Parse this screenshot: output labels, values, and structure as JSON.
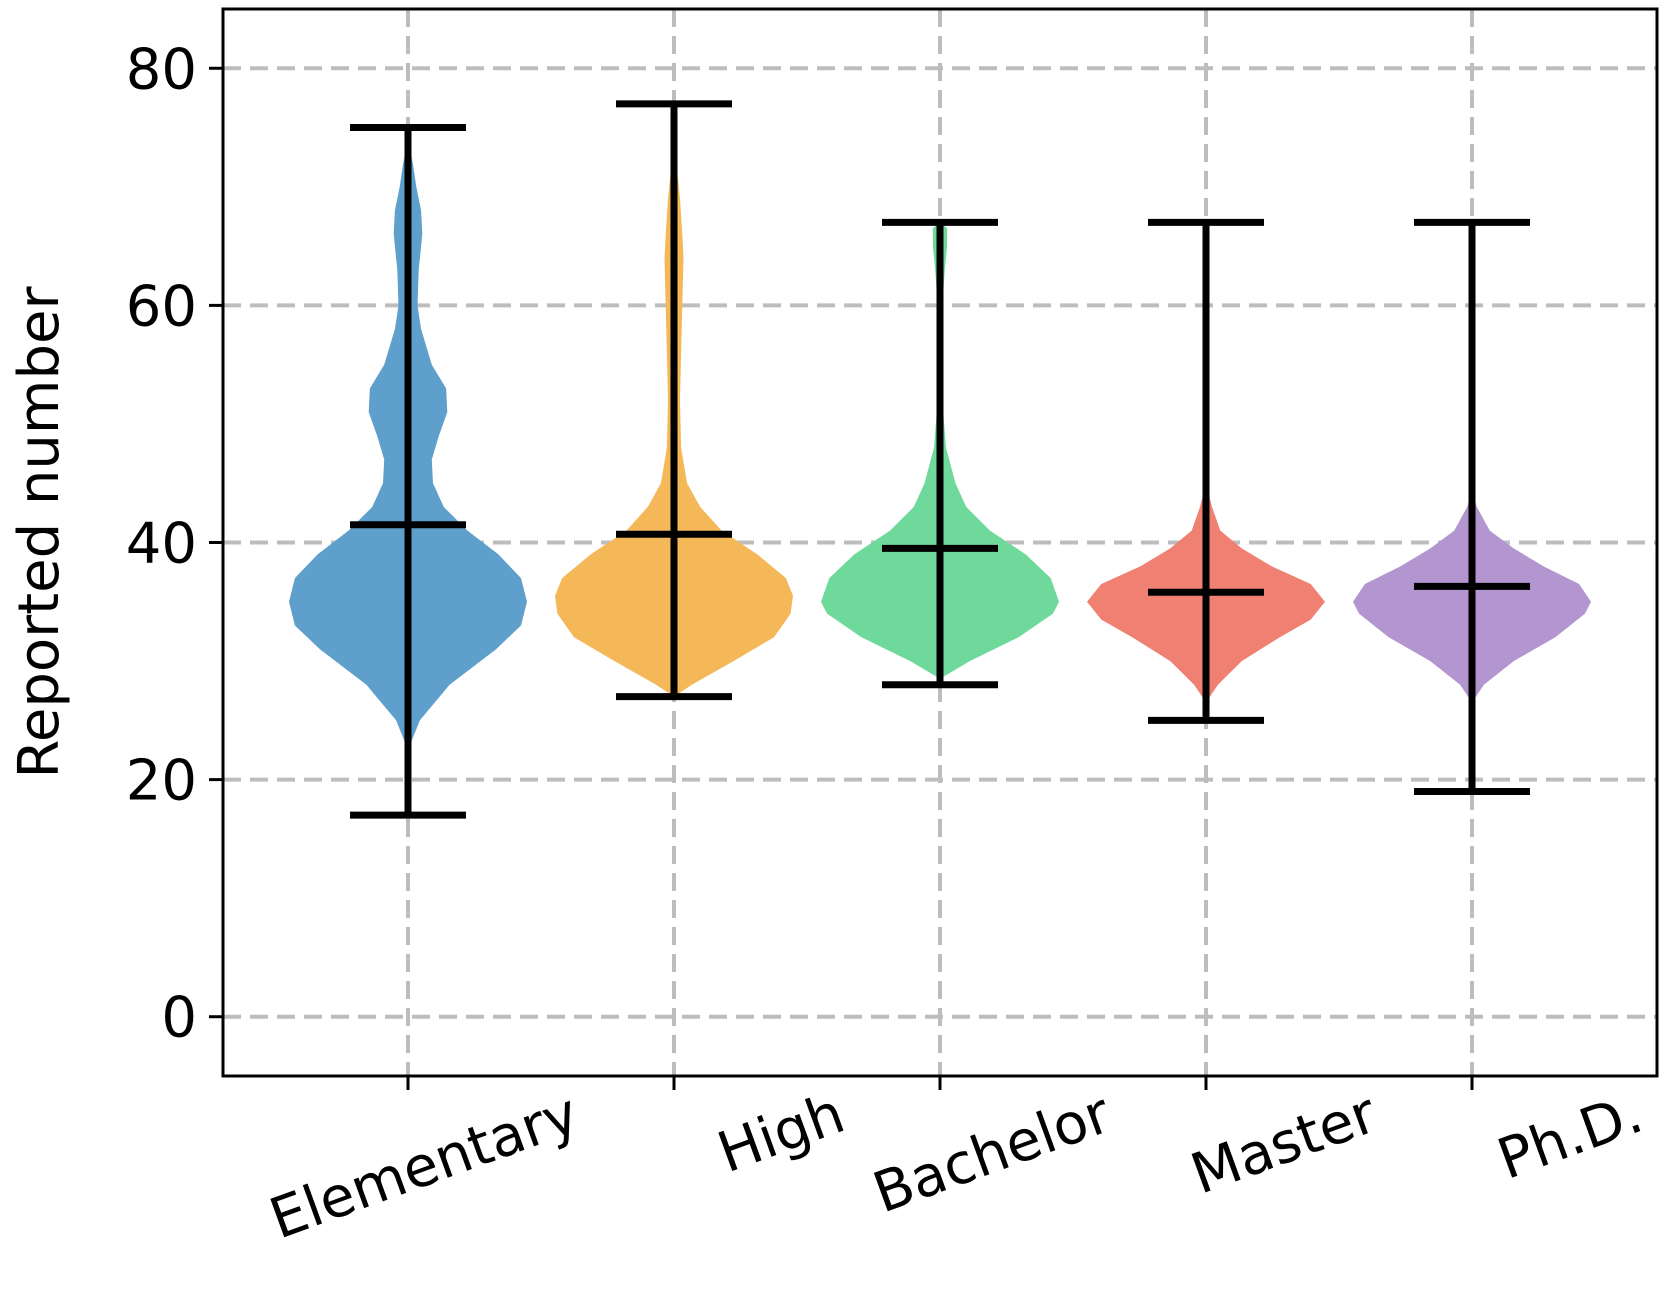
{
  "chart_data": {
    "type": "violin",
    "title": "",
    "xlabel": "",
    "ylabel": "Reported number",
    "ylim": [
      -5,
      85
    ],
    "yticks": [
      0,
      20,
      40,
      60,
      80
    ],
    "grid": true,
    "categories": [
      "Elementary",
      "High",
      "Bachelor",
      "Master",
      "Ph.D."
    ],
    "violins": [
      {
        "name": "Elementary",
        "color": "#5f9fcb",
        "min": 17,
        "max": 75,
        "mean": 41.5,
        "density": [
          [
            22.5,
            0.0
          ],
          [
            25,
            0.1
          ],
          [
            28,
            0.35
          ],
          [
            31,
            0.74
          ],
          [
            33,
            0.95
          ],
          [
            35,
            1.0
          ],
          [
            37,
            0.95
          ],
          [
            39,
            0.76
          ],
          [
            41,
            0.5
          ],
          [
            43,
            0.3
          ],
          [
            45,
            0.21
          ],
          [
            47,
            0.2
          ],
          [
            49,
            0.26
          ],
          [
            51,
            0.33
          ],
          [
            53,
            0.32
          ],
          [
            55,
            0.2
          ],
          [
            58,
            0.11
          ],
          [
            60,
            0.08
          ],
          [
            63,
            0.09
          ],
          [
            66,
            0.12
          ],
          [
            68,
            0.11
          ],
          [
            70,
            0.07
          ],
          [
            72,
            0.04
          ],
          [
            74,
            0.0
          ]
        ]
      },
      {
        "name": "High",
        "color": "#f5b859",
        "min": 27,
        "max": 77,
        "mean": 40.7,
        "density": [
          [
            27,
            0.0
          ],
          [
            28,
            0.15
          ],
          [
            30,
            0.5
          ],
          [
            32,
            0.84
          ],
          [
            34,
            0.98
          ],
          [
            35.5,
            1.0
          ],
          [
            37,
            0.94
          ],
          [
            39,
            0.7
          ],
          [
            41,
            0.4
          ],
          [
            43,
            0.22
          ],
          [
            45,
            0.11
          ],
          [
            48,
            0.06
          ],
          [
            52,
            0.05
          ],
          [
            56,
            0.06
          ],
          [
            60,
            0.07
          ],
          [
            64,
            0.08
          ],
          [
            66,
            0.07
          ],
          [
            69,
            0.05
          ],
          [
            71,
            0.03
          ],
          [
            73,
            0.0
          ]
        ]
      },
      {
        "name": "Bachelor",
        "color": "#6ed99a",
        "min": 28,
        "max": 67,
        "mean": 39.5,
        "density": [
          [
            28.5,
            0.0
          ],
          [
            30,
            0.25
          ],
          [
            32,
            0.66
          ],
          [
            34,
            0.95
          ],
          [
            35,
            1.0
          ],
          [
            37,
            0.93
          ],
          [
            39,
            0.72
          ],
          [
            41,
            0.42
          ],
          [
            43,
            0.22
          ],
          [
            45,
            0.13
          ],
          [
            48,
            0.05
          ],
          [
            52,
            0.02
          ],
          [
            56,
            0.01
          ],
          [
            60,
            0.02
          ],
          [
            63,
            0.04
          ],
          [
            65,
            0.06
          ],
          [
            66.5,
            0.06
          ],
          [
            67,
            0.0
          ]
        ]
      },
      {
        "name": "Master",
        "color": "#ef8072",
        "min": 25,
        "max": 67,
        "mean": 35.8,
        "density": [
          [
            26.5,
            0.0
          ],
          [
            28,
            0.1
          ],
          [
            30,
            0.3
          ],
          [
            32,
            0.62
          ],
          [
            33.5,
            0.88
          ],
          [
            35,
            1.0
          ],
          [
            36.5,
            0.88
          ],
          [
            38,
            0.55
          ],
          [
            39.5,
            0.3
          ],
          [
            41,
            0.12
          ],
          [
            43,
            0.05
          ],
          [
            45,
            0.0
          ]
        ]
      },
      {
        "name": "Ph.D.",
        "color": "#b395d0",
        "min": 19,
        "max": 67,
        "mean": 36.3,
        "density": [
          [
            26.5,
            0.0
          ],
          [
            28,
            0.1
          ],
          [
            30,
            0.35
          ],
          [
            32,
            0.7
          ],
          [
            34,
            0.95
          ],
          [
            35,
            1.0
          ],
          [
            36.5,
            0.9
          ],
          [
            38,
            0.6
          ],
          [
            39.5,
            0.35
          ],
          [
            41,
            0.15
          ],
          [
            43,
            0.04
          ],
          [
            44.5,
            0.0
          ]
        ]
      }
    ]
  }
}
